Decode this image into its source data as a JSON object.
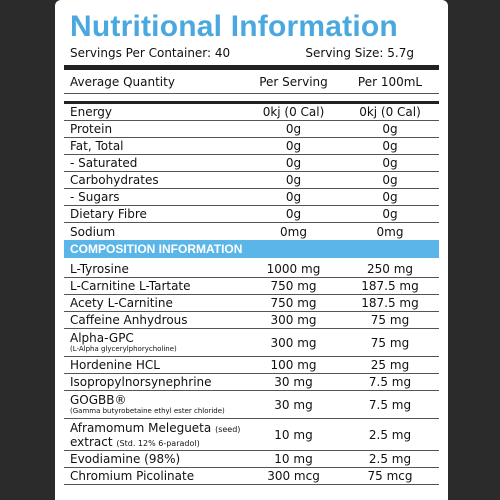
{
  "title": "Nutritional Information",
  "servings_per_container": "Servings Per Container: 40",
  "serving_size": "Serving Size: 5.7g",
  "columns": {
    "name": "Average Quantity",
    "per_serving": "Per Serving",
    "per_100ml": "Per 100mL"
  },
  "nutrition_rows": [
    {
      "name": "Energy",
      "per_serving": "0kj (0 Cal)",
      "per_100ml": "0kj (0 Cal)"
    },
    {
      "name": "Protein",
      "per_serving": "0g",
      "per_100ml": "0g"
    },
    {
      "name": "Fat, Total",
      "per_serving": "0g",
      "per_100ml": "0g"
    },
    {
      "name": "- Saturated",
      "per_serving": "0g",
      "per_100ml": "0g"
    },
    {
      "name": "Carbohydrates",
      "per_serving": "0g",
      "per_100ml": "0g"
    },
    {
      "name": "- Sugars",
      "per_serving": "0g",
      "per_100ml": "0g"
    },
    {
      "name": "Dietary Fibre",
      "per_serving": "0g",
      "per_100ml": "0g"
    },
    {
      "name": "Sodium",
      "per_serving": "0mg",
      "per_100ml": "0mg"
    }
  ],
  "composition_title": "COMPOSITION INFORMATION",
  "composition_rows": [
    {
      "name": "L-Tyrosine",
      "per_serving": "1000 mg",
      "per_100ml": "250 mg"
    },
    {
      "name": "L-Carnitine L-Tartate",
      "per_serving": "750 mg",
      "per_100ml": "187.5 mg"
    },
    {
      "name": "Acety L-Carnitine",
      "per_serving": "750 mg",
      "per_100ml": "187.5 mg"
    },
    {
      "name": "Caffeine Anhydrous",
      "per_serving": "300 mg",
      "per_100ml": "75 mg"
    },
    {
      "name": "Alpha-GPC",
      "sub": "(L-Alpha glycerylphorycholine)",
      "per_serving": "300 mg",
      "per_100ml": "75 mg"
    },
    {
      "name": "Hordenine HCL",
      "per_serving": "100 mg",
      "per_100ml": "25 mg"
    },
    {
      "name": "Isopropylnorsynephrine",
      "per_serving": "30 mg",
      "per_100ml": "7.5 mg"
    },
    {
      "name": "GOGBB®",
      "sub": "(Gamma butyrobetaine ethyl ester chloride)",
      "per_serving": "30 mg",
      "per_100ml": "7.5 mg"
    },
    {
      "name": "Aframomum Melegueta",
      "inline": "(seed)",
      "name2": "extract",
      "sub2": "(Std. 12% 6-paradol)",
      "per_serving": "10 mg",
      "per_100ml": "2.5 mg"
    },
    {
      "name": "Evodiamine (98%)",
      "per_serving": "10 mg",
      "per_100ml": "2.5 mg"
    },
    {
      "name": "Chromium Picolinate",
      "per_serving": "300 mcg",
      "per_100ml": "75 mcg"
    }
  ]
}
